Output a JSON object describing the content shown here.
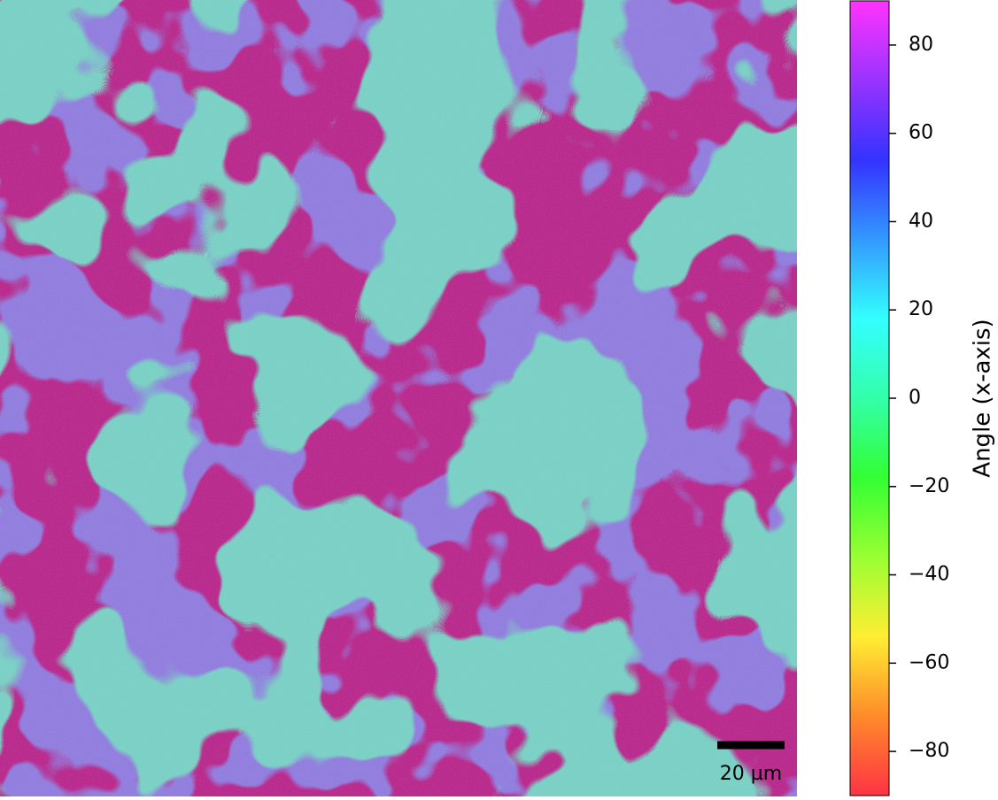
{
  "chart_data": {
    "type": "image",
    "scale_bar_label": "20 µm",
    "colorbar": {
      "label": "Angle (x-axis)",
      "lim": [
        -90,
        90
      ],
      "ticks": [
        {
          "value": -80,
          "label": "−80"
        },
        {
          "value": -60,
          "label": "−60"
        },
        {
          "value": -40,
          "label": "−40"
        },
        {
          "value": -20,
          "label": "−20"
        },
        0,
        20,
        40,
        60,
        80
      ],
      "colormap": [
        "#ff3344",
        "#ff8a2a",
        "#ffee33",
        "#99ff33",
        "#33ff33",
        "#33ffaa",
        "#33ffff",
        "#3399ff",
        "#3333ff",
        "#9933ff",
        "#ff33ff"
      ]
    }
  }
}
